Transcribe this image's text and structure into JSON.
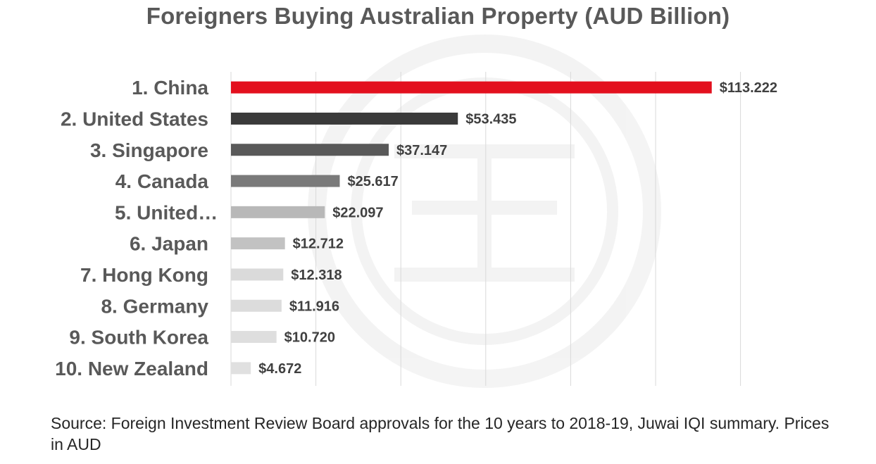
{
  "title": "Foreigners Buying Australian Property (AUD Billion)",
  "source_note": "Source: Foreign Investment Review Board approvals for the 10 years to 2018-19, Juwai IQI summary. Prices in AUD",
  "chart_data": {
    "type": "bar",
    "orientation": "horizontal",
    "title": "Foreigners Buying Australian Property (AUD Billion)",
    "categories": [
      "1. China",
      "2. United States",
      "3. Singapore",
      "4. Canada",
      "5. United…",
      "6. Japan",
      "7. Hong Kong",
      "8. Germany",
      "9. South Korea",
      "10. New Zealand"
    ],
    "values": [
      113.222,
      53.435,
      37.147,
      25.617,
      22.097,
      12.712,
      12.318,
      11.916,
      10.72,
      4.672
    ],
    "value_labels": [
      "$113.222",
      "$53.435",
      "$37.147",
      "$25.617",
      "$22.097",
      "$12.712",
      "$12.318",
      "$11.916",
      "$10.720",
      "$4.672"
    ],
    "bar_colors": [
      "#e3101e",
      "#3a3a3a",
      "#595959",
      "#7a7a7a",
      "#b8b8b8",
      "#c2c2c2",
      "#dadada",
      "#dcdcdc",
      "#dedede",
      "#e0e0e0"
    ],
    "xlim": [
      0,
      120
    ],
    "gridlines": true,
    "legend": "none",
    "watermark": "Juwai logo"
  }
}
